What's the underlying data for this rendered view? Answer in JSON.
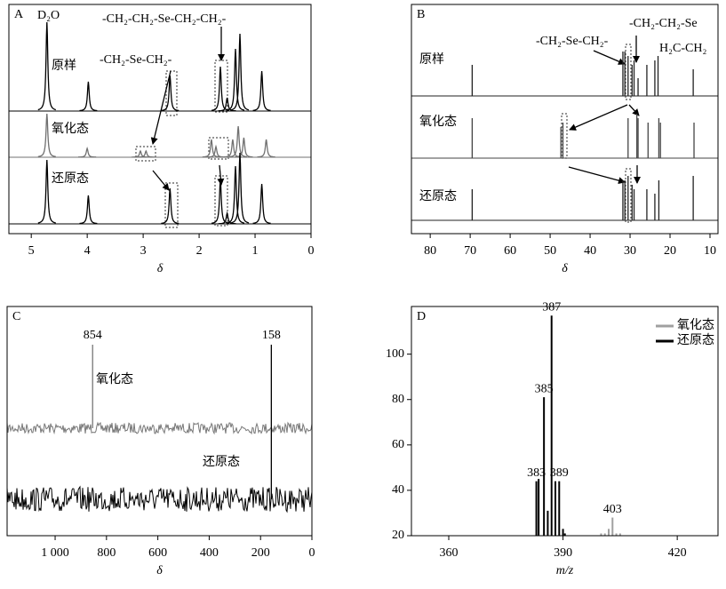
{
  "chart_data": [
    {
      "type": "spectrum",
      "panel": "A",
      "xlabel": "δ",
      "xlim": [
        5.4,
        0
      ],
      "xticks": [
        5,
        4,
        3,
        2,
        1,
        0
      ],
      "annotations": [
        "D₂O",
        "-CH₂-CH₂-Se-CH₂-CH₂-",
        "-CH₂-Se-CH₂-"
      ],
      "series": [
        {
          "name": "原样",
          "color": "#000000",
          "x": [
            4.72,
            3.98,
            2.52,
            1.62,
            1.5,
            1.35,
            1.27,
            0.88
          ],
          "values": [
            1.0,
            0.33,
            0.4,
            0.5,
            0.15,
            0.7,
            0.87,
            0.45
          ]
        },
        {
          "name": "氧化态",
          "color": "#707070",
          "x": [
            4.72,
            4.0,
            3.05,
            2.95,
            1.78,
            1.7,
            1.4,
            1.3,
            1.2,
            0.8
          ],
          "values": [
            0.49,
            0.1,
            0.07,
            0.07,
            0.2,
            0.12,
            0.2,
            0.35,
            0.22,
            0.2
          ]
        },
        {
          "name": "还原态",
          "color": "#000000",
          "x": [
            4.72,
            3.98,
            2.52,
            1.62,
            1.5,
            1.35,
            1.27,
            0.88
          ],
          "values": [
            0.72,
            0.32,
            0.4,
            0.5,
            0.12,
            0.65,
            0.8,
            0.45
          ]
        }
      ]
    },
    {
      "type": "spectrum",
      "panel": "B",
      "xlabel": "δ",
      "xlim": [
        84.7,
        8
      ],
      "xticks": [
        80,
        70,
        60,
        50,
        40,
        30,
        20,
        10
      ],
      "annotations": [
        "-CH₂-Se-CH₂-",
        "-CH₂-CH₂-Se",
        "H₂C-CH₂"
      ],
      "series": [
        {
          "name": "原样",
          "color": "#222222",
          "x": [
            69.5,
            31.8,
            31.3,
            30.5,
            29.5,
            29,
            28,
            25.8,
            23.8,
            23,
            14.2
          ],
          "values": [
            0.35,
            0.5,
            0.5,
            0.45,
            0.35,
            0.4,
            0.2,
            0.35,
            0.4,
            0.45,
            0.3
          ]
        },
        {
          "name": "氧化态",
          "color": "#444444",
          "x": [
            69.5,
            47.3,
            46.8,
            30.5,
            28.3,
            28,
            25.5,
            22.8,
            22.4,
            14
          ],
          "values": [
            0.45,
            0.35,
            0.4,
            0.45,
            0.5,
            0.45,
            0.4,
            0.45,
            0.4,
            0.4
          ]
        },
        {
          "name": "还原态",
          "color": "#222222",
          "x": [
            69.5,
            31.8,
            31.3,
            30.5,
            29.5,
            29,
            25.8,
            23.8,
            22.8,
            14.2
          ],
          "values": [
            0.35,
            0.45,
            0.45,
            0.5,
            0.4,
            0.35,
            0.35,
            0.3,
            0.45,
            0.5
          ]
        }
      ]
    },
    {
      "type": "spectrum",
      "panel": "C",
      "xlabel": "δ",
      "xlim": [
        1187,
        0
      ],
      "xticks": [
        {
          "value": 1000,
          "label": "1 000"
        },
        800,
        600,
        400,
        200,
        0
      ],
      "series": [
        {
          "name": "氧化态",
          "color": "#777777",
          "x": [
            854
          ],
          "values": [
            0.94
          ],
          "peak_labels": [
            "854"
          ]
        },
        {
          "name": "还原态",
          "color": "#000000",
          "x": [
            158
          ],
          "values": [
            1.74
          ],
          "peak_labels": [
            "158"
          ]
        }
      ]
    },
    {
      "type": "bar",
      "panel": "D",
      "xlabel": "m/z",
      "xlim": [
        350.2,
        430.7
      ],
      "xticks": [
        360,
        390,
        420
      ],
      "ylim": [
        20,
        121
      ],
      "yticks": [
        20,
        40,
        60,
        80,
        100
      ],
      "legend": "upper right",
      "series": [
        {
          "name": "氧化态",
          "color": "#a0a0a0",
          "x": [
            400,
            401,
            402,
            403,
            404,
            405
          ],
          "values": [
            21,
            21,
            23,
            28,
            21,
            21
          ],
          "peak_labels": [
            null,
            null,
            null,
            "403",
            null,
            null
          ]
        },
        {
          "name": "还原态",
          "color": "#000000",
          "x": [
            383,
            383.6,
            385,
            386,
            387,
            388,
            389,
            390,
            390.5
          ],
          "values": [
            44,
            45,
            81,
            31,
            117,
            44,
            44,
            23,
            21
          ],
          "peak_labels": [
            "383",
            null,
            "385",
            null,
            "387",
            null,
            "389",
            null,
            null
          ]
        }
      ]
    }
  ]
}
